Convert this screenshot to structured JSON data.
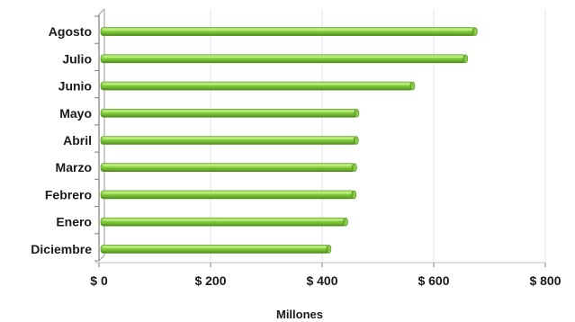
{
  "chart_data": {
    "type": "bar",
    "orientation": "horizontal",
    "categories": [
      "Diciembre",
      "Enero",
      "Febrero",
      "Marzo",
      "Abril",
      "Mayo",
      "Junio",
      "Julio",
      "Agosto"
    ],
    "values": [
      412,
      442,
      457,
      458,
      461,
      462,
      562,
      657,
      674
    ],
    "title": "",
    "xlabel": "Millones",
    "ylabel": "",
    "xlim": [
      0,
      800
    ],
    "x_ticks": [
      0,
      200,
      400,
      600,
      800
    ],
    "x_tick_labels": [
      "$ 0",
      "$ 200",
      "$ 400",
      "$ 600",
      "$ 800"
    ],
    "grid": true,
    "legend": "none",
    "bar_color": "#7cc43a",
    "bar_highlight_color": "#c8f08a",
    "bar_shadow_color": "#4e8a1c"
  }
}
